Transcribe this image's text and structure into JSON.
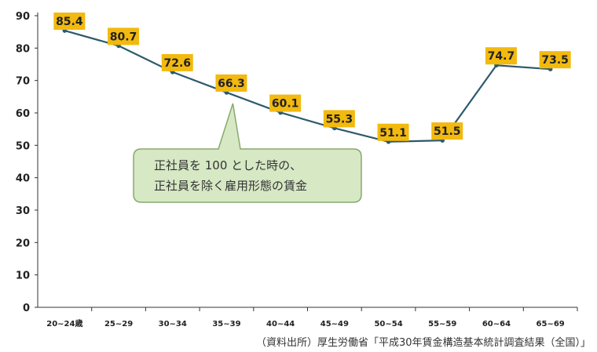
{
  "chart_data": {
    "type": "line",
    "categories": [
      "20~24歳",
      "25~29",
      "30~34",
      "35~39",
      "40~44",
      "45~49",
      "50~54",
      "55~59",
      "60~64",
      "65~69"
    ],
    "series": [
      {
        "values": [
          85.4,
          80.7,
          72.6,
          66.3,
          60.1,
          55.3,
          51.1,
          51.5,
          74.7,
          73.5
        ]
      }
    ],
    "data_labels": [
      "85.4",
      "80.7",
      "72.6",
      "66.3",
      "60.1",
      "55.3",
      "51.1",
      "51.5",
      "74.7",
      "73.5"
    ],
    "ylim": [
      0,
      90
    ],
    "yticks": [
      0,
      10,
      20,
      30,
      40,
      50,
      60,
      70,
      80,
      90
    ],
    "grid": false,
    "line_color": "#2c5a6c",
    "label_box_color": "#f2b90f",
    "annotation": {
      "lines": [
        "正社員を 100 とした時の、",
        "正社員を除く雇用形態の賃金"
      ],
      "fill": "#d6e8c4",
      "stroke": "#8aa86e"
    }
  },
  "source": "（資料出所）厚生労働省「平成30年賃金構造基本統計調査結果（全国）」"
}
